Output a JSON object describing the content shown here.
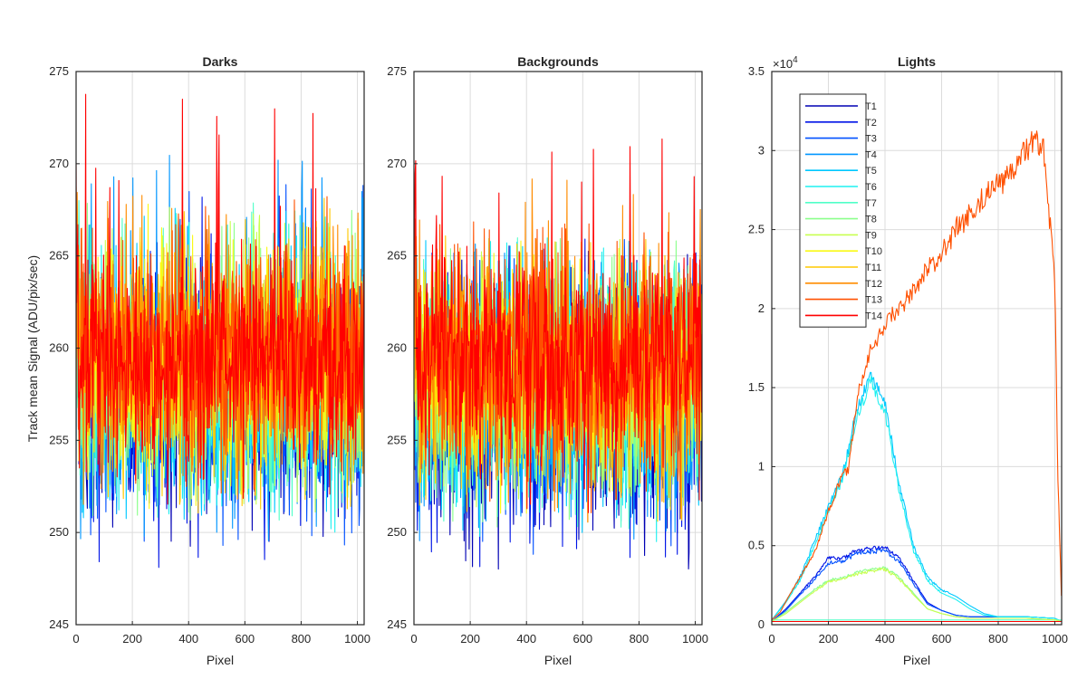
{
  "figure": {
    "ylabel": "Track mean Signal (ADU/pix/sec)"
  },
  "chart_data": [
    {
      "type": "line",
      "title": "Darks",
      "xlabel": "Pixel",
      "ylabel": "Track mean Signal (ADU/pix/sec)",
      "xlim": [
        0,
        1024
      ],
      "ylim": [
        245,
        275
      ],
      "xticks": [
        0,
        200,
        400,
        600,
        800,
        1000
      ],
      "yticks": [
        245,
        250,
        255,
        260,
        265,
        270,
        275
      ],
      "grid": true,
      "series_shape": "noise",
      "series": [
        {
          "name": "T1",
          "color": "#0000B4",
          "mean": 257.2,
          "range": [
            249,
            266
          ]
        },
        {
          "name": "T2",
          "color": "#0014E6",
          "mean": 257.4,
          "range": [
            248,
            269
          ]
        },
        {
          "name": "T3",
          "color": "#0050FF",
          "mean": 257.6,
          "range": [
            249,
            269
          ]
        },
        {
          "name": "T4",
          "color": "#0096FF",
          "mean": 257.8,
          "range": [
            249.5,
            270.5
          ]
        },
        {
          "name": "T5",
          "color": "#00C8FF",
          "mean": 258.0,
          "range": [
            250,
            268
          ]
        },
        {
          "name": "T6",
          "color": "#1EF0F0",
          "mean": 258.2,
          "range": [
            250,
            268
          ]
        },
        {
          "name": "T7",
          "color": "#50FFC8",
          "mean": 258.4,
          "range": [
            250.5,
            268
          ]
        },
        {
          "name": "T8",
          "color": "#8CFF8C",
          "mean": 258.6,
          "range": [
            250.5,
            268
          ]
        },
        {
          "name": "T9",
          "color": "#C8FF50",
          "mean": 258.8,
          "range": [
            251,
            268
          ]
        },
        {
          "name": "T10",
          "color": "#FAFA14",
          "mean": 259.0,
          "range": [
            251,
            268.5
          ]
        },
        {
          "name": "T11",
          "color": "#FFC800",
          "mean": 259.2,
          "range": [
            251,
            268.8
          ]
        },
        {
          "name": "T12",
          "color": "#FF8C00",
          "mean": 259.4,
          "range": [
            251.5,
            268.5
          ]
        },
        {
          "name": "T13",
          "color": "#FF5000",
          "mean": 259.6,
          "range": [
            251.5,
            268.5
          ]
        },
        {
          "name": "T14",
          "color": "#FF0000",
          "mean": 259.8,
          "range": [
            251.5,
            274
          ]
        }
      ]
    },
    {
      "type": "line",
      "title": "Backgrounds",
      "xlabel": "Pixel",
      "ylabel": "",
      "xlim": [
        0,
        1024
      ],
      "ylim": [
        245,
        275
      ],
      "xticks": [
        0,
        200,
        400,
        600,
        800,
        1000
      ],
      "yticks": [
        245,
        250,
        255,
        260,
        265,
        270,
        275
      ],
      "grid": true,
      "series_shape": "noise",
      "series": [
        {
          "name": "T1",
          "color": "#0000B4",
          "mean": 256.8,
          "range": [
            248,
            266
          ]
        },
        {
          "name": "T2",
          "color": "#0014E6",
          "mean": 257.0,
          "range": [
            247.5,
            266
          ]
        },
        {
          "name": "T3",
          "color": "#0050FF",
          "mean": 257.2,
          "range": [
            248.5,
            266
          ]
        },
        {
          "name": "T4",
          "color": "#0096FF",
          "mean": 257.4,
          "range": [
            249,
            266
          ]
        },
        {
          "name": "T5",
          "color": "#00C8FF",
          "mean": 257.6,
          "range": [
            249.5,
            266
          ]
        },
        {
          "name": "T6",
          "color": "#1EF0F0",
          "mean": 257.8,
          "range": [
            249.5,
            266
          ]
        },
        {
          "name": "T7",
          "color": "#50FFC8",
          "mean": 258.0,
          "range": [
            250,
            266
          ]
        },
        {
          "name": "T8",
          "color": "#8CFF8C",
          "mean": 258.2,
          "range": [
            250,
            266
          ]
        },
        {
          "name": "T9",
          "color": "#C8FF50",
          "mean": 258.4,
          "range": [
            250,
            266
          ]
        },
        {
          "name": "T10",
          "color": "#FAFA14",
          "mean": 258.6,
          "range": [
            250.5,
            266
          ]
        },
        {
          "name": "T11",
          "color": "#FFC800",
          "mean": 258.8,
          "range": [
            250.5,
            266.5
          ]
        },
        {
          "name": "T12",
          "color": "#FF8C00",
          "mean": 259.0,
          "range": [
            250.5,
            269.5
          ]
        },
        {
          "name": "T13",
          "color": "#FF5000",
          "mean": 259.2,
          "range": [
            251,
            267
          ]
        },
        {
          "name": "T14",
          "color": "#FF0000",
          "mean": 259.4,
          "range": [
            251,
            273
          ]
        }
      ]
    },
    {
      "type": "line",
      "title": "Lights",
      "xlabel": "Pixel",
      "ylabel": "",
      "xlim": [
        0,
        1024
      ],
      "ylim": [
        0,
        3.5
      ],
      "y_exponent_label": "×10",
      "y_exponent": "4",
      "xticks": [
        0,
        200,
        400,
        600,
        800,
        1000
      ],
      "yticks": [
        0,
        0.5,
        1,
        1.5,
        2,
        2.5,
        3,
        3.5
      ],
      "ytick_labels": [
        "0",
        "0.5",
        "1",
        "1.5",
        "2",
        "2.5",
        "3",
        "3.5"
      ],
      "grid": true,
      "legend": "top-left",
      "series": [
        {
          "name": "T1",
          "color": "#0000B4",
          "x": [
            0,
            1024
          ],
          "y": [
            0.02,
            0.02
          ]
        },
        {
          "name": "T2",
          "color": "#0014E6",
          "x": [
            0,
            50,
            100,
            150,
            200,
            250,
            300,
            350,
            400,
            450,
            500,
            550,
            600,
            650,
            700,
            750,
            800,
            900,
            1000,
            1024
          ],
          "y": [
            0.02,
            0.1,
            0.2,
            0.3,
            0.42,
            0.42,
            0.47,
            0.48,
            0.49,
            0.42,
            0.28,
            0.14,
            0.09,
            0.06,
            0.05,
            0.05,
            0.05,
            0.05,
            0.04,
            0.02
          ]
        },
        {
          "name": "T3",
          "color": "#0050FF",
          "x": [
            0,
            50,
            100,
            150,
            200,
            250,
            300,
            350,
            400,
            450,
            500,
            550,
            600,
            650,
            700,
            750,
            800,
            900,
            1000,
            1024
          ],
          "y": [
            0.02,
            0.09,
            0.19,
            0.28,
            0.39,
            0.4,
            0.45,
            0.46,
            0.47,
            0.4,
            0.26,
            0.13,
            0.09,
            0.06,
            0.05,
            0.05,
            0.05,
            0.05,
            0.04,
            0.02
          ]
        },
        {
          "name": "T4",
          "color": "#0096FF",
          "x": [
            0,
            1024
          ],
          "y": [
            0.02,
            0.02
          ]
        },
        {
          "name": "T5",
          "color": "#00C8FF",
          "x": [
            0,
            50,
            100,
            150,
            200,
            250,
            300,
            350,
            400,
            450,
            500,
            550,
            600,
            650,
            700,
            750,
            800,
            900,
            1000,
            1024
          ],
          "y": [
            0.03,
            0.15,
            0.3,
            0.52,
            0.75,
            0.95,
            1.35,
            1.6,
            1.4,
            0.9,
            0.5,
            0.3,
            0.22,
            0.18,
            0.12,
            0.07,
            0.05,
            0.05,
            0.04,
            0.02
          ]
        },
        {
          "name": "T6",
          "color": "#1EF0F0",
          "x": [
            0,
            50,
            100,
            150,
            200,
            250,
            300,
            350,
            400,
            450,
            500,
            550,
            600,
            650,
            700,
            750,
            800,
            900,
            1000,
            1024
          ],
          "y": [
            0.03,
            0.14,
            0.28,
            0.5,
            0.72,
            0.92,
            1.3,
            1.55,
            1.35,
            0.85,
            0.47,
            0.28,
            0.2,
            0.16,
            0.1,
            0.06,
            0.05,
            0.05,
            0.04,
            0.02
          ]
        },
        {
          "name": "T7",
          "color": "#50FFC8",
          "x": [
            0,
            1024
          ],
          "y": [
            0.03,
            0.03
          ]
        },
        {
          "name": "T8",
          "color": "#8CFF8C",
          "x": [
            0,
            50,
            100,
            150,
            200,
            250,
            300,
            350,
            400,
            450,
            500,
            550,
            600,
            650,
            700,
            750,
            800,
            900,
            1000,
            1024
          ],
          "y": [
            0.02,
            0.08,
            0.15,
            0.22,
            0.28,
            0.3,
            0.33,
            0.35,
            0.36,
            0.3,
            0.2,
            0.1,
            0.07,
            0.05,
            0.04,
            0.04,
            0.04,
            0.04,
            0.03,
            0.02
          ]
        },
        {
          "name": "T9",
          "color": "#C8FF50",
          "x": [
            0,
            50,
            100,
            150,
            200,
            250,
            300,
            350,
            400,
            450,
            500,
            550,
            600,
            650,
            700,
            750,
            800,
            900,
            1000,
            1024
          ],
          "y": [
            0.02,
            0.07,
            0.14,
            0.21,
            0.27,
            0.29,
            0.32,
            0.34,
            0.35,
            0.29,
            0.19,
            0.1,
            0.07,
            0.05,
            0.04,
            0.04,
            0.04,
            0.04,
            0.03,
            0.02
          ]
        },
        {
          "name": "T10",
          "color": "#FAFA14",
          "x": [
            0,
            1024
          ],
          "y": [
            0.02,
            0.02
          ]
        },
        {
          "name": "T11",
          "color": "#FFC800",
          "x": [
            0,
            1024
          ],
          "y": [
            0.02,
            0.02
          ]
        },
        {
          "name": "T12",
          "color": "#FF8C00",
          "x": [
            0,
            1024
          ],
          "y": [
            0.02,
            0.02
          ]
        },
        {
          "name": "T13",
          "color": "#FF5000",
          "x": [
            0,
            30,
            60,
            100,
            150,
            200,
            250,
            270,
            300,
            350,
            400,
            450,
            500,
            550,
            600,
            650,
            700,
            750,
            800,
            850,
            900,
            930,
            960,
            1000,
            1010,
            1024
          ],
          "y": [
            0.03,
            0.08,
            0.18,
            0.3,
            0.45,
            0.72,
            0.95,
            0.97,
            1.42,
            1.75,
            1.9,
            2.0,
            2.1,
            2.25,
            2.35,
            2.5,
            2.6,
            2.7,
            2.78,
            2.88,
            3.0,
            3.05,
            3.0,
            2.2,
            1.0,
            0.12
          ]
        },
        {
          "name": "T14",
          "color": "#FF0000",
          "x": [
            0,
            1024
          ],
          "y": [
            0.02,
            0.02
          ]
        }
      ]
    }
  ]
}
